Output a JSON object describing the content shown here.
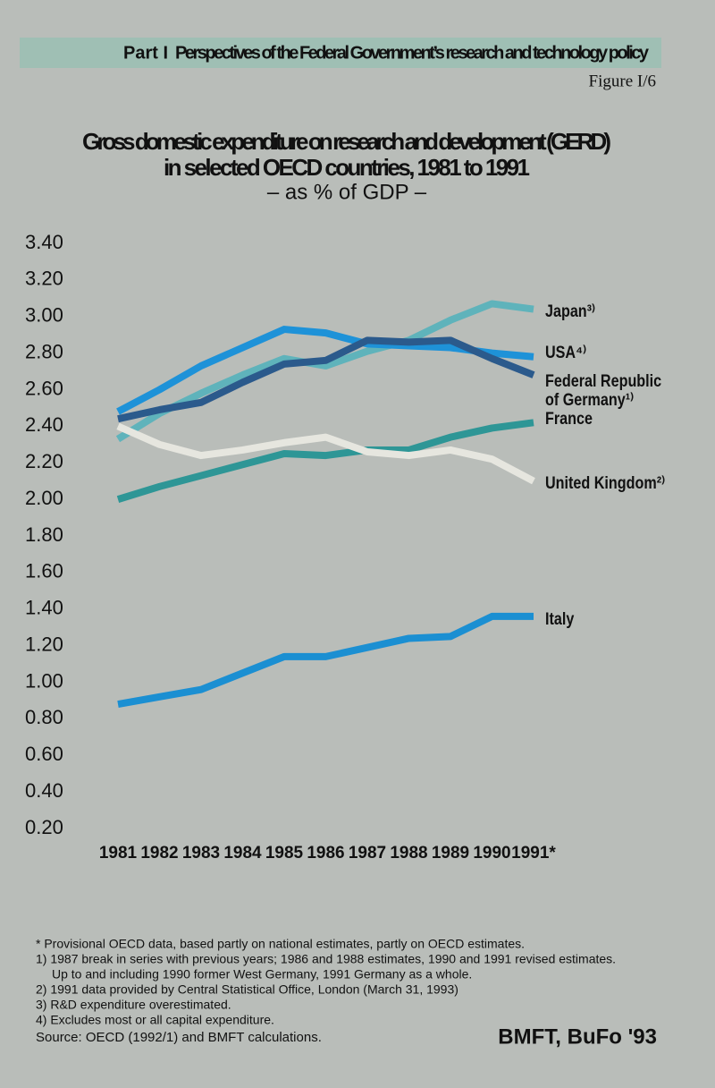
{
  "header": {
    "part": "Part I",
    "section": "Perspectives of the Federal Government’s research and technology policy",
    "figure": "Figure I/6"
  },
  "chart_data": {
    "type": "line",
    "title": "Gross domestic expenditure on research and development (GERD)",
    "title_line2": "in selected OECD countries, 1981 to 1991",
    "subtitle": "– as % of GDP –",
    "categories": [
      "1981",
      "1982",
      "1983",
      "1984",
      "1985",
      "1986",
      "1987",
      "1988",
      "1989",
      "1990",
      "1991*"
    ],
    "series": [
      {
        "name": "Japan³⁾",
        "color": "#5fb3bb",
        "values": [
          2.33,
          2.47,
          2.58,
          2.68,
          2.77,
          2.73,
          2.81,
          2.87,
          2.98,
          3.07,
          3.04
        ]
      },
      {
        "name": "USA⁴⁾",
        "color": "#1e92d8",
        "values": [
          2.48,
          2.6,
          2.73,
          2.83,
          2.93,
          2.91,
          2.85,
          2.84,
          2.83,
          2.8,
          2.78
        ]
      },
      {
        "name": "Federal Republic of Germany¹⁾",
        "color": "#2b5a8c",
        "values": [
          2.44,
          2.49,
          2.53,
          2.64,
          2.74,
          2.76,
          2.87,
          2.86,
          2.87,
          2.77,
          2.68
        ]
      },
      {
        "name": "France",
        "color": "#2e9696",
        "values": [
          2.0,
          2.07,
          2.13,
          2.19,
          2.25,
          2.24,
          2.27,
          2.27,
          2.34,
          2.39,
          2.42
        ]
      },
      {
        "name": "United Kingdom²⁾",
        "color": "#e6e6df",
        "values": [
          2.4,
          2.3,
          2.24,
          2.27,
          2.31,
          2.34,
          2.26,
          2.24,
          2.27,
          2.22,
          2.1
        ]
      },
      {
        "name": "Italy",
        "color": "#1b8fd2",
        "values": [
          0.88,
          0.92,
          0.96,
          1.05,
          1.14,
          1.14,
          1.19,
          1.24,
          1.25,
          1.36,
          1.36
        ]
      }
    ],
    "ylim": [
      0.2,
      3.4
    ],
    "yticks": [
      {
        "value": 3.4,
        "label": "3.40"
      },
      {
        "value": 3.2,
        "label": "3.20"
      },
      {
        "value": 3.0,
        "label": "3.00"
      },
      {
        "value": 2.8,
        "label": "2.80"
      },
      {
        "value": 2.6,
        "label": "2.60"
      },
      {
        "value": 2.4,
        "label": "2.40"
      },
      {
        "value": 2.2,
        "label": "2.20"
      },
      {
        "value": 2.0,
        "label": "2.00"
      },
      {
        "value": 1.8,
        "label": "1.80"
      },
      {
        "value": 1.6,
        "label": "1.60"
      },
      {
        "value": 1.4,
        "label": "1.40"
      },
      {
        "value": 1.2,
        "label": "1.20"
      },
      {
        "value": 1.0,
        "label": "1.00"
      },
      {
        "value": 0.8,
        "label": "0.80"
      },
      {
        "value": 0.6,
        "label": "0.60"
      },
      {
        "value": 0.4,
        "label": "0.40"
      },
      {
        "value": 0.2,
        "label": "0.20"
      }
    ],
    "grid": false
  },
  "footnotes": [
    "* Provisional OECD data, based partly on national estimates, partly on OECD estimates.",
    "1)  1987 break in series with previous years; 1986 and 1988 estimates, 1990 and 1991 revised estimates.",
    "Up to and including 1990 former West Germany, 1991 Germany as a whole.",
    "2)  1991 data provided by Central Statistical Office, London (March 31, 1993)",
    "3)  R&D expenditure overestimated.",
    "4)  Excludes most or all capital expenditure."
  ],
  "source": "Source: OECD (1992/1) and BMFT calculations.",
  "credit": "BMFT, BuFo '93"
}
